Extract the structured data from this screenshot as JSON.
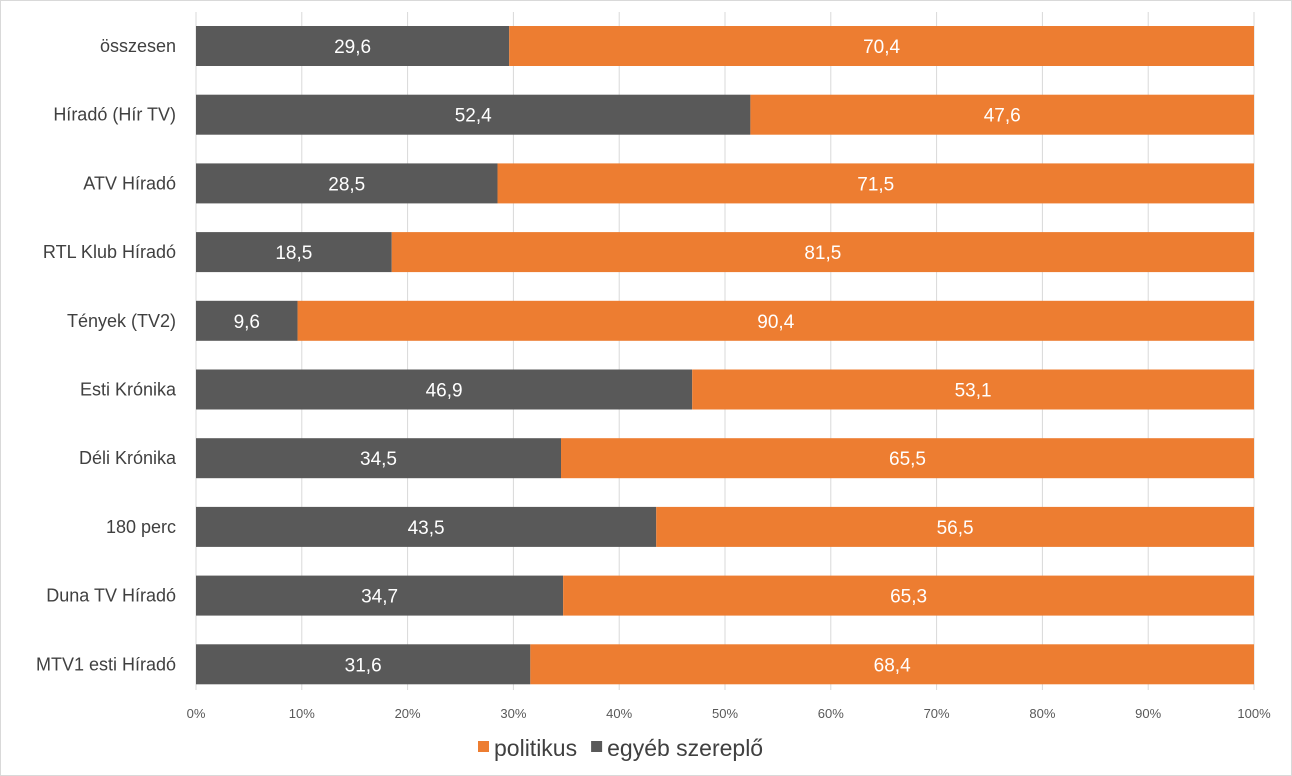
{
  "chart_data": {
    "type": "bar",
    "orientation": "horizontal",
    "stacked": "percent",
    "categories": [
      "összesen",
      "Híradó (Hír TV)",
      "ATV Híradó",
      "RTL Klub Híradó",
      "Tények (TV2)",
      "Esti Krónika",
      "Déli Krónika",
      "180 perc",
      "Duna TV Híradó",
      "MTV1 esti Híradó"
    ],
    "series": [
      {
        "name": "egyéb szereplő",
        "color": "#595959",
        "values": [
          29.6,
          52.4,
          28.5,
          18.5,
          9.6,
          46.9,
          34.5,
          43.5,
          34.7,
          31.6
        ],
        "labels": [
          "29,6",
          "52,4",
          "28,5",
          "18,5",
          "9,6",
          "46,9",
          "34,5",
          "43,5",
          "34,7",
          "31,6"
        ]
      },
      {
        "name": "politikus",
        "color": "#ED7D31",
        "values": [
          70.4,
          47.6,
          71.5,
          81.5,
          90.4,
          53.1,
          65.5,
          56.5,
          65.3,
          68.4
        ],
        "labels": [
          "70,4",
          "47,6",
          "71,5",
          "81,5",
          "90,4",
          "53,1",
          "65,5",
          "56,5",
          "65,3",
          "68,4"
        ]
      }
    ],
    "xlim": [
      0,
      100
    ],
    "xticks": [
      "0%",
      "10%",
      "20%",
      "30%",
      "40%",
      "50%",
      "60%",
      "70%",
      "80%",
      "90%",
      "100%"
    ],
    "grid": true,
    "legend": {
      "placement": "bottom",
      "order": [
        "politikus",
        "egyéb szereplő"
      ]
    }
  }
}
